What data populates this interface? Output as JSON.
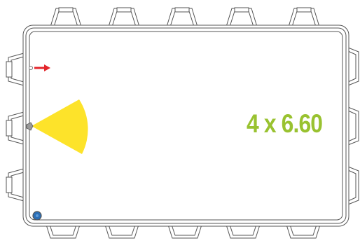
{
  "size_label": "4 x 6.60",
  "colors": {
    "label": "#99c230",
    "outline": "#555555",
    "arrow": "#e3262b",
    "sprinkler_arc": "#fde32a",
    "drain": "#2c6fb6"
  },
  "icons": {
    "arrow": "arrow-right-icon",
    "sprinkler": "sprinkler-head-icon",
    "drain": "drain-icon"
  }
}
